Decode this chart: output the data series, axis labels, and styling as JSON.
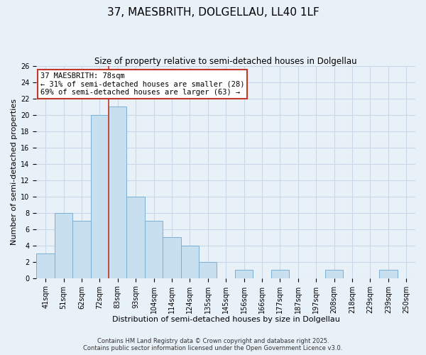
{
  "title": "37, MAESBRITH, DOLGELLAU, LL40 1LF",
  "subtitle": "Size of property relative to semi-detached houses in Dolgellau",
  "xlabel": "Distribution of semi-detached houses by size in Dolgellau",
  "ylabel": "Number of semi-detached properties",
  "bar_labels": [
    "41sqm",
    "51sqm",
    "62sqm",
    "72sqm",
    "83sqm",
    "93sqm",
    "104sqm",
    "114sqm",
    "124sqm",
    "135sqm",
    "145sqm",
    "156sqm",
    "166sqm",
    "177sqm",
    "187sqm",
    "197sqm",
    "208sqm",
    "218sqm",
    "229sqm",
    "239sqm",
    "250sqm"
  ],
  "bar_values": [
    3,
    8,
    7,
    20,
    21,
    10,
    7,
    5,
    4,
    2,
    0,
    1,
    0,
    1,
    0,
    0,
    1,
    0,
    0,
    1,
    0
  ],
  "bar_color": "#c8dff0",
  "bar_edge_color": "#7ab0d4",
  "ylim": [
    0,
    26
  ],
  "yticks": [
    0,
    2,
    4,
    6,
    8,
    10,
    12,
    14,
    16,
    18,
    20,
    22,
    24,
    26
  ],
  "grid_color": "#c8d8e8",
  "background_color": "#e8f0f8",
  "vline_x": 3.5,
  "vline_color": "#c0392b",
  "annotation_text": "37 MAESBRITH: 78sqm\n← 31% of semi-detached houses are smaller (28)\n69% of semi-detached houses are larger (63) →",
  "annotation_box_color": "white",
  "annotation_box_edge_color": "#c0392b",
  "footnote1": "Contains HM Land Registry data © Crown copyright and database right 2025.",
  "footnote2": "Contains public sector information licensed under the Open Government Licence v3.0.",
  "title_fontsize": 11,
  "subtitle_fontsize": 8.5,
  "axis_label_fontsize": 8,
  "tick_fontsize": 7,
  "annotation_fontsize": 7.5,
  "footnote_fontsize": 6
}
